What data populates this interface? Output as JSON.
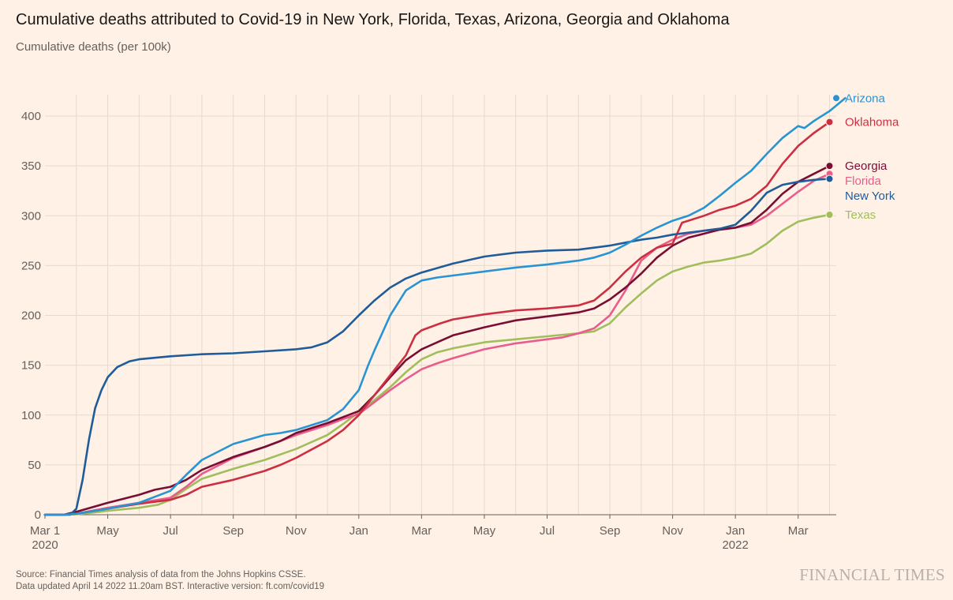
{
  "title": "Cumulative deaths attributed to Covid-19 in New York, Florida, Texas, Arizona, Georgia and Oklahoma",
  "subtitle": "Cumulative deaths (per 100k)",
  "footer": {
    "source": "Source: Financial Times analysis of data from the Johns Hopkins CSSE.",
    "updated": "Data updated April 14 2022 11.20am BST. Interactive version: ft.com/covid19"
  },
  "brand": "FINANCIAL TIMES",
  "chart_data": {
    "type": "line",
    "x_ticks": [
      {
        "m": 0,
        "label": "Mar 1",
        "year": "2020"
      },
      {
        "m": 2,
        "label": "May"
      },
      {
        "m": 4,
        "label": "Jul"
      },
      {
        "m": 6,
        "label": "Sep"
      },
      {
        "m": 8,
        "label": "Nov"
      },
      {
        "m": 10,
        "label": "Jan"
      },
      {
        "m": 12,
        "label": "Mar"
      },
      {
        "m": 14,
        "label": "May"
      },
      {
        "m": 16,
        "label": "Jul"
      },
      {
        "m": 18,
        "label": "Sep"
      },
      {
        "m": 20,
        "label": "Nov"
      },
      {
        "m": 22,
        "label": "Jan",
        "year": "2022"
      },
      {
        "m": 24,
        "label": "Mar"
      }
    ],
    "x_range_months": [
      0,
      25.5
    ],
    "y_ticks": [
      0,
      50,
      100,
      150,
      200,
      250,
      300,
      350,
      400
    ],
    "ylim": [
      0,
      420
    ],
    "grid": true,
    "series": [
      {
        "name": "Texas",
        "color": "#a0be5c",
        "points": [
          [
            0,
            0
          ],
          [
            0.6,
            0
          ],
          [
            1,
            0.5
          ],
          [
            1.5,
            2
          ],
          [
            2,
            4
          ],
          [
            3,
            7
          ],
          [
            3.6,
            10
          ],
          [
            4,
            15
          ],
          [
            4.5,
            26
          ],
          [
            5,
            36
          ],
          [
            6,
            46
          ],
          [
            7,
            55
          ],
          [
            8,
            66
          ],
          [
            9,
            80
          ],
          [
            9.5,
            91
          ],
          [
            10,
            103
          ],
          [
            10.5,
            115
          ],
          [
            11,
            128
          ],
          [
            11.5,
            143
          ],
          [
            12,
            156
          ],
          [
            12.5,
            163
          ],
          [
            13,
            167
          ],
          [
            14,
            173
          ],
          [
            15,
            176
          ],
          [
            16,
            179
          ],
          [
            17,
            182
          ],
          [
            17.5,
            184
          ],
          [
            18,
            192
          ],
          [
            18.5,
            208
          ],
          [
            19,
            222
          ],
          [
            19.5,
            235
          ],
          [
            20,
            244
          ],
          [
            20.5,
            249
          ],
          [
            21,
            253
          ],
          [
            21.5,
            255
          ],
          [
            22,
            258
          ],
          [
            22.5,
            262
          ],
          [
            23,
            272
          ],
          [
            23.5,
            285
          ],
          [
            24,
            294
          ],
          [
            24.5,
            298
          ],
          [
            25,
            301
          ]
        ]
      },
      {
        "name": "Florida",
        "color": "#e95d8c",
        "points": [
          [
            0,
            0
          ],
          [
            0.6,
            0
          ],
          [
            1,
            1
          ],
          [
            2,
            7
          ],
          [
            3,
            12
          ],
          [
            4,
            17
          ],
          [
            4.5,
            28
          ],
          [
            5,
            41
          ],
          [
            6,
            57
          ],
          [
            7,
            68
          ],
          [
            7.5,
            74
          ],
          [
            8,
            80
          ],
          [
            9,
            90
          ],
          [
            9.5,
            96
          ],
          [
            10,
            101
          ],
          [
            10.5,
            113
          ],
          [
            11,
            125
          ],
          [
            11.5,
            136
          ],
          [
            12,
            146
          ],
          [
            12.5,
            152
          ],
          [
            13,
            157
          ],
          [
            14,
            166
          ],
          [
            15,
            172
          ],
          [
            16,
            176
          ],
          [
            16.5,
            178
          ],
          [
            17,
            182
          ],
          [
            17.5,
            187
          ],
          [
            18,
            200
          ],
          [
            18.5,
            225
          ],
          [
            19,
            255
          ],
          [
            19.5,
            268
          ],
          [
            20,
            276
          ],
          [
            20.5,
            282
          ],
          [
            21,
            285
          ],
          [
            21.5,
            287
          ],
          [
            22,
            288
          ],
          [
            22.5,
            291
          ],
          [
            23,
            300
          ],
          [
            23.5,
            312
          ],
          [
            24,
            324
          ],
          [
            24.5,
            335
          ],
          [
            25,
            342
          ]
        ]
      },
      {
        "name": "Georgia",
        "color": "#7a0d34",
        "points": [
          [
            0,
            0
          ],
          [
            0.6,
            0
          ],
          [
            1,
            3
          ],
          [
            2,
            12
          ],
          [
            3,
            20
          ],
          [
            3.5,
            25
          ],
          [
            4,
            28
          ],
          [
            4.5,
            35
          ],
          [
            5,
            45
          ],
          [
            6,
            58
          ],
          [
            7,
            68
          ],
          [
            7.5,
            74
          ],
          [
            8,
            82
          ],
          [
            9,
            92
          ],
          [
            9.5,
            98
          ],
          [
            10,
            104
          ],
          [
            10.5,
            120
          ],
          [
            11,
            138
          ],
          [
            11.5,
            155
          ],
          [
            12,
            166
          ],
          [
            12.5,
            173
          ],
          [
            13,
            180
          ],
          [
            14,
            188
          ],
          [
            15,
            195
          ],
          [
            16,
            199
          ],
          [
            17,
            203
          ],
          [
            17.5,
            207
          ],
          [
            18,
            216
          ],
          [
            18.5,
            228
          ],
          [
            19,
            242
          ],
          [
            19.5,
            258
          ],
          [
            20,
            270
          ],
          [
            20.5,
            278
          ],
          [
            21,
            282
          ],
          [
            21.5,
            286
          ],
          [
            22,
            288
          ],
          [
            22.5,
            293
          ],
          [
            23,
            306
          ],
          [
            23.5,
            322
          ],
          [
            24,
            334
          ],
          [
            24.5,
            342
          ],
          [
            25,
            350
          ]
        ]
      },
      {
        "name": "Oklahoma",
        "color": "#cc2f42",
        "points": [
          [
            0,
            0
          ],
          [
            0.6,
            0
          ],
          [
            1,
            1
          ],
          [
            2,
            6
          ],
          [
            3,
            11
          ],
          [
            4,
            15
          ],
          [
            4.5,
            20
          ],
          [
            5,
            28
          ],
          [
            6,
            35
          ],
          [
            7,
            44
          ],
          [
            7.5,
            50
          ],
          [
            8,
            57
          ],
          [
            9,
            74
          ],
          [
            9.5,
            85
          ],
          [
            10,
            100
          ],
          [
            10.5,
            120
          ],
          [
            11,
            140
          ],
          [
            11.5,
            160
          ],
          [
            11.8,
            180
          ],
          [
            12,
            185
          ],
          [
            12.6,
            192
          ],
          [
            13,
            196
          ],
          [
            14,
            201
          ],
          [
            15,
            205
          ],
          [
            16,
            207
          ],
          [
            17,
            210
          ],
          [
            17.5,
            215
          ],
          [
            18,
            228
          ],
          [
            18.5,
            244
          ],
          [
            19,
            258
          ],
          [
            19.5,
            268
          ],
          [
            20,
            272
          ],
          [
            20.3,
            293
          ],
          [
            21,
            300
          ],
          [
            21.5,
            306
          ],
          [
            22,
            310
          ],
          [
            22.5,
            317
          ],
          [
            23,
            330
          ],
          [
            23.5,
            352
          ],
          [
            24,
            370
          ],
          [
            24.5,
            383
          ],
          [
            25,
            394
          ]
        ]
      },
      {
        "name": "New York",
        "color": "#1f5c99",
        "points": [
          [
            0,
            0
          ],
          [
            0.8,
            0
          ],
          [
            1,
            6
          ],
          [
            1.2,
            35
          ],
          [
            1.4,
            75
          ],
          [
            1.6,
            107
          ],
          [
            1.8,
            125
          ],
          [
            2,
            138
          ],
          [
            2.3,
            148
          ],
          [
            2.7,
            154
          ],
          [
            3,
            156
          ],
          [
            4,
            159
          ],
          [
            5,
            161
          ],
          [
            6,
            162
          ],
          [
            7,
            164
          ],
          [
            8,
            166
          ],
          [
            8.5,
            168
          ],
          [
            9,
            173
          ],
          [
            9.5,
            184
          ],
          [
            10,
            200
          ],
          [
            10.5,
            215
          ],
          [
            11,
            228
          ],
          [
            11.5,
            237
          ],
          [
            12,
            243
          ],
          [
            13,
            252
          ],
          [
            14,
            259
          ],
          [
            15,
            263
          ],
          [
            16,
            265
          ],
          [
            17,
            266
          ],
          [
            18,
            270
          ],
          [
            18.5,
            273
          ],
          [
            19,
            276
          ],
          [
            19.5,
            278
          ],
          [
            20,
            281
          ],
          [
            20.5,
            283
          ],
          [
            21,
            285
          ],
          [
            21.5,
            287
          ],
          [
            22,
            291
          ],
          [
            22.5,
            305
          ],
          [
            23,
            323
          ],
          [
            23.5,
            331
          ],
          [
            24,
            334
          ],
          [
            24.5,
            336
          ],
          [
            25,
            337
          ]
        ]
      },
      {
        "name": "Arizona",
        "color": "#2994d3",
        "points": [
          [
            0,
            0
          ],
          [
            0.6,
            0
          ],
          [
            1,
            1
          ],
          [
            2,
            6
          ],
          [
            3,
            12
          ],
          [
            3.5,
            18
          ],
          [
            4,
            24
          ],
          [
            4.5,
            40
          ],
          [
            5,
            55
          ],
          [
            6,
            71
          ],
          [
            7,
            80
          ],
          [
            7.5,
            82
          ],
          [
            8,
            85
          ],
          [
            9,
            95
          ],
          [
            9.5,
            106
          ],
          [
            10,
            125
          ],
          [
            10.3,
            150
          ],
          [
            10.5,
            165
          ],
          [
            11,
            200
          ],
          [
            11.5,
            225
          ],
          [
            12,
            235
          ],
          [
            12.5,
            238
          ],
          [
            13,
            240
          ],
          [
            14,
            244
          ],
          [
            15,
            248
          ],
          [
            16,
            251
          ],
          [
            17,
            255
          ],
          [
            17.5,
            258
          ],
          [
            18,
            263
          ],
          [
            18.5,
            271
          ],
          [
            19,
            280
          ],
          [
            19.5,
            288
          ],
          [
            20,
            295
          ],
          [
            20.5,
            300
          ],
          [
            21,
            308
          ],
          [
            21.5,
            320
          ],
          [
            22,
            333
          ],
          [
            22.5,
            345
          ],
          [
            23,
            362
          ],
          [
            23.5,
            378
          ],
          [
            24,
            390
          ],
          [
            24.2,
            388
          ],
          [
            24.5,
            395
          ],
          [
            25,
            405
          ],
          [
            25.5,
            418
          ]
        ]
      }
    ],
    "labels": [
      {
        "series": "Arizona",
        "text": "Arizona"
      },
      {
        "series": "Oklahoma",
        "text": "Oklahoma"
      },
      {
        "series": "Georgia",
        "text": "Georgia"
      },
      {
        "series": "Florida",
        "text": "Florida"
      },
      {
        "series": "New York",
        "text": "New York"
      },
      {
        "series": "Texas",
        "text": "Texas"
      }
    ]
  }
}
